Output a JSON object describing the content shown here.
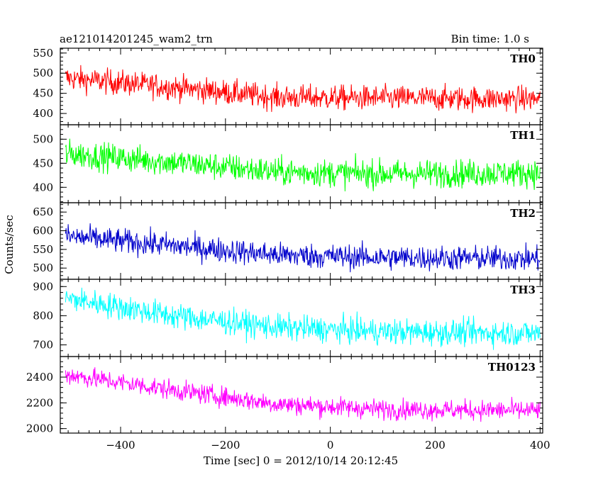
{
  "header": {
    "title": "ae121014201245_wam2_trn",
    "bin_time": "Bin time: 1.0 s"
  },
  "chart_data": {
    "type": "line",
    "xlabel": "Time [sec] 0 = 2012/10/14 20:12:45",
    "ylabel": "Counts/sec",
    "xlim": [
      -515,
      405
    ],
    "x_ticks": [
      "−400",
      "−200",
      "0",
      "200",
      "400"
    ],
    "x_tick_values": [
      -400,
      -200,
      0,
      200,
      400
    ],
    "bin_seconds": 1.0,
    "panels": [
      {
        "name": "TH0",
        "color": "#ff0000",
        "ylim": [
          372,
          562
        ],
        "y_ticks": [
          "400",
          "450",
          "500",
          "550"
        ],
        "y_tick_values": [
          400,
          450,
          500,
          550
        ],
        "trend": [
          [
            -505,
            488
          ],
          [
            -300,
            465
          ],
          [
            -100,
            440
          ],
          [
            100,
            438
          ],
          [
            400,
            436
          ]
        ],
        "noise_amplitude": 28
      },
      {
        "name": "TH1",
        "color": "#00ff00",
        "ylim": [
          368,
          530
        ],
        "y_ticks": [
          "400",
          "450",
          "500"
        ],
        "y_tick_values": [
          400,
          450,
          500
        ],
        "trend": [
          [
            -505,
            470
          ],
          [
            -300,
            452
          ],
          [
            -100,
            432
          ],
          [
            100,
            428
          ],
          [
            400,
            430
          ]
        ],
        "noise_amplitude": 26
      },
      {
        "name": "TH2",
        "color": "#0000cc",
        "ylim": [
          470,
          675
        ],
        "y_ticks": [
          "500",
          "550",
          "600",
          "650"
        ],
        "y_tick_values": [
          500,
          550,
          600,
          650
        ],
        "trend": [
          [
            -505,
            585
          ],
          [
            -300,
            560
          ],
          [
            -100,
            535
          ],
          [
            100,
            528
          ],
          [
            400,
            525
          ]
        ],
        "noise_amplitude": 30
      },
      {
        "name": "TH3",
        "color": "#00ffff",
        "ylim": [
          660,
          925
        ],
        "y_ticks": [
          "700",
          "800",
          "900"
        ],
        "y_tick_values": [
          700,
          800,
          900
        ],
        "trend": [
          [
            -505,
            860
          ],
          [
            -300,
            800
          ],
          [
            -100,
            760
          ],
          [
            100,
            745
          ],
          [
            400,
            740
          ]
        ],
        "noise_amplitude": 40
      },
      {
        "name": "TH0123",
        "color": "#ff00ff",
        "ylim": [
          1965,
          2560
        ],
        "y_ticks": [
          "2000",
          "2200",
          "2400"
        ],
        "y_tick_values": [
          2000,
          2200,
          2400
        ],
        "trend": [
          [
            -505,
            2420
          ],
          [
            -300,
            2300
          ],
          [
            -100,
            2190
          ],
          [
            100,
            2150
          ],
          [
            400,
            2140
          ]
        ],
        "noise_amplitude": 70
      }
    ]
  }
}
